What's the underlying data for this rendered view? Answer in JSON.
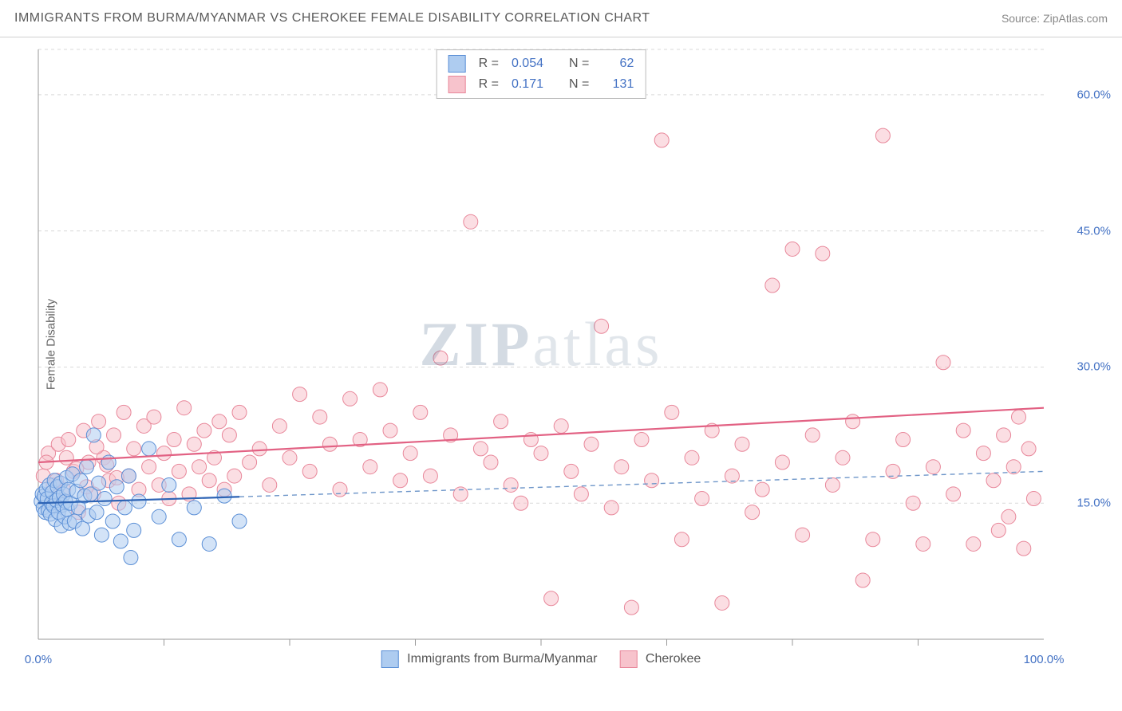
{
  "header": {
    "title": "IMMIGRANTS FROM BURMA/MYANMAR VS CHEROKEE FEMALE DISABILITY CORRELATION CHART",
    "source_label": "Source: ZipAtlas.com"
  },
  "watermark": {
    "bold": "ZIP",
    "rest": "atlas"
  },
  "chart": {
    "type": "scatter",
    "ylabel": "Female Disability",
    "xlim": [
      0,
      100
    ],
    "ylim": [
      0,
      65
    ],
    "xtick_labels": {
      "0": "0.0%",
      "100": "100.0%"
    },
    "xtick_minors": [
      12.5,
      25,
      37.5,
      50,
      62.5,
      75,
      87.5
    ],
    "ytick_labels": {
      "15": "15.0%",
      "30": "30.0%",
      "45": "45.0%",
      "60": "60.0%"
    },
    "grid_color": "#d9d9d9",
    "axis_color": "#999999",
    "background_color": "#ffffff",
    "marker_radius": 9,
    "line_width": 2.2,
    "series": {
      "a": {
        "label": "Immigrants from Burma/Myanmar",
        "fill": "#aeccf0",
        "stroke": "#5b8fd6",
        "fill_opacity": 0.55,
        "line_color": "#2e64b5",
        "dash_color": "#6e96c9",
        "R": "0.054",
        "N": "62",
        "trend": {
          "x1": 0,
          "y1": 15.0,
          "x2": 100,
          "y2": 18.5,
          "solid_until_x": 20
        },
        "points": [
          [
            0.3,
            15.2
          ],
          [
            0.4,
            16.0
          ],
          [
            0.5,
            14.5
          ],
          [
            0.6,
            15.8
          ],
          [
            0.7,
            14.0
          ],
          [
            0.8,
            16.5
          ],
          [
            0.9,
            15.5
          ],
          [
            1.0,
            14.2
          ],
          [
            1.1,
            17.0
          ],
          [
            1.2,
            13.8
          ],
          [
            1.3,
            15.0
          ],
          [
            1.4,
            16.2
          ],
          [
            1.5,
            14.7
          ],
          [
            1.6,
            17.5
          ],
          [
            1.7,
            13.2
          ],
          [
            1.8,
            15.3
          ],
          [
            1.9,
            16.8
          ],
          [
            2.0,
            14.0
          ],
          [
            2.1,
            15.6
          ],
          [
            2.2,
            17.2
          ],
          [
            2.3,
            12.5
          ],
          [
            2.4,
            14.8
          ],
          [
            2.5,
            16.0
          ],
          [
            2.6,
            13.5
          ],
          [
            2.7,
            15.2
          ],
          [
            2.8,
            17.8
          ],
          [
            2.9,
            14.3
          ],
          [
            3.0,
            16.5
          ],
          [
            3.1,
            12.8
          ],
          [
            3.2,
            15.0
          ],
          [
            3.4,
            18.2
          ],
          [
            3.6,
            13.0
          ],
          [
            3.8,
            16.3
          ],
          [
            4.0,
            14.5
          ],
          [
            4.2,
            17.5
          ],
          [
            4.4,
            12.2
          ],
          [
            4.6,
            15.8
          ],
          [
            4.8,
            19.0
          ],
          [
            5.0,
            13.6
          ],
          [
            5.2,
            16.0
          ],
          [
            5.5,
            22.5
          ],
          [
            5.8,
            14.0
          ],
          [
            6.0,
            17.2
          ],
          [
            6.3,
            11.5
          ],
          [
            6.6,
            15.5
          ],
          [
            7.0,
            19.5
          ],
          [
            7.4,
            13.0
          ],
          [
            7.8,
            16.8
          ],
          [
            8.2,
            10.8
          ],
          [
            8.6,
            14.5
          ],
          [
            9.0,
            18.0
          ],
          [
            9.5,
            12.0
          ],
          [
            10.0,
            15.2
          ],
          [
            11.0,
            21.0
          ],
          [
            12.0,
            13.5
          ],
          [
            13.0,
            17.0
          ],
          [
            14.0,
            11.0
          ],
          [
            15.5,
            14.5
          ],
          [
            17.0,
            10.5
          ],
          [
            18.5,
            15.8
          ],
          [
            20.0,
            13.0
          ],
          [
            9.2,
            9.0
          ]
        ]
      },
      "b": {
        "label": "Cherokee",
        "fill": "#f7c3cc",
        "stroke": "#e8879a",
        "fill_opacity": 0.55,
        "line_color": "#e26183",
        "R": "0.171",
        "N": "131",
        "trend": {
          "x1": 0,
          "y1": 19.5,
          "x2": 100,
          "y2": 25.5
        },
        "points": [
          [
            0.5,
            18.0
          ],
          [
            1.0,
            20.5
          ],
          [
            1.5,
            17.0
          ],
          [
            2.0,
            21.5
          ],
          [
            2.5,
            16.5
          ],
          [
            3.0,
            22.0
          ],
          [
            3.5,
            18.5
          ],
          [
            4.0,
            14.0
          ],
          [
            4.5,
            23.0
          ],
          [
            5.0,
            19.5
          ],
          [
            5.5,
            16.0
          ],
          [
            6.0,
            24.0
          ],
          [
            6.5,
            20.0
          ],
          [
            7.0,
            17.5
          ],
          [
            7.5,
            22.5
          ],
          [
            8.0,
            15.0
          ],
          [
            8.5,
            25.0
          ],
          [
            9.0,
            18.0
          ],
          [
            9.5,
            21.0
          ],
          [
            10.0,
            16.5
          ],
          [
            10.5,
            23.5
          ],
          [
            11.0,
            19.0
          ],
          [
            11.5,
            24.5
          ],
          [
            12.0,
            17.0
          ],
          [
            12.5,
            20.5
          ],
          [
            13.0,
            15.5
          ],
          [
            13.5,
            22.0
          ],
          [
            14.0,
            18.5
          ],
          [
            14.5,
            25.5
          ],
          [
            15.0,
            16.0
          ],
          [
            15.5,
            21.5
          ],
          [
            16.0,
            19.0
          ],
          [
            16.5,
            23.0
          ],
          [
            17.0,
            17.5
          ],
          [
            17.5,
            20.0
          ],
          [
            18.0,
            24.0
          ],
          [
            18.5,
            16.5
          ],
          [
            19.0,
            22.5
          ],
          [
            19.5,
            18.0
          ],
          [
            20.0,
            25.0
          ],
          [
            21.0,
            19.5
          ],
          [
            22.0,
            21.0
          ],
          [
            23.0,
            17.0
          ],
          [
            24.0,
            23.5
          ],
          [
            25.0,
            20.0
          ],
          [
            26.0,
            27.0
          ],
          [
            27.0,
            18.5
          ],
          [
            28.0,
            24.5
          ],
          [
            29.0,
            21.5
          ],
          [
            30.0,
            16.5
          ],
          [
            31.0,
            26.5
          ],
          [
            32.0,
            22.0
          ],
          [
            33.0,
            19.0
          ],
          [
            34.0,
            27.5
          ],
          [
            35.0,
            23.0
          ],
          [
            36.0,
            17.5
          ],
          [
            37.0,
            20.5
          ],
          [
            38.0,
            25.0
          ],
          [
            39.0,
            18.0
          ],
          [
            40.0,
            31.0
          ],
          [
            41.0,
            22.5
          ],
          [
            42.0,
            16.0
          ],
          [
            43.0,
            46.0
          ],
          [
            44.0,
            21.0
          ],
          [
            45.0,
            19.5
          ],
          [
            46.0,
            24.0
          ],
          [
            47.0,
            17.0
          ],
          [
            48.0,
            15.0
          ],
          [
            49.0,
            22.0
          ],
          [
            50.0,
            20.5
          ],
          [
            51.0,
            4.5
          ],
          [
            52.0,
            23.5
          ],
          [
            53.0,
            18.5
          ],
          [
            54.0,
            16.0
          ],
          [
            55.0,
            21.5
          ],
          [
            56.0,
            34.5
          ],
          [
            57.0,
            14.5
          ],
          [
            58.0,
            19.0
          ],
          [
            59.0,
            3.5
          ],
          [
            60.0,
            22.0
          ],
          [
            61.0,
            17.5
          ],
          [
            62.0,
            55.0
          ],
          [
            63.0,
            25.0
          ],
          [
            64.0,
            11.0
          ],
          [
            65.0,
            20.0
          ],
          [
            66.0,
            15.5
          ],
          [
            67.0,
            23.0
          ],
          [
            68.0,
            4.0
          ],
          [
            69.0,
            18.0
          ],
          [
            70.0,
            21.5
          ],
          [
            71.0,
            14.0
          ],
          [
            72.0,
            16.5
          ],
          [
            73.0,
            39.0
          ],
          [
            74.0,
            19.5
          ],
          [
            75.0,
            43.0
          ],
          [
            76.0,
            11.5
          ],
          [
            77.0,
            22.5
          ],
          [
            78.0,
            42.5
          ],
          [
            79.0,
            17.0
          ],
          [
            80.0,
            20.0
          ],
          [
            81.0,
            24.0
          ],
          [
            82.0,
            6.5
          ],
          [
            83.0,
            11.0
          ],
          [
            84.0,
            55.5
          ],
          [
            85.0,
            18.5
          ],
          [
            86.0,
            22.0
          ],
          [
            87.0,
            15.0
          ],
          [
            88.0,
            10.5
          ],
          [
            89.0,
            19.0
          ],
          [
            90.0,
            30.5
          ],
          [
            91.0,
            16.0
          ],
          [
            92.0,
            23.0
          ],
          [
            93.0,
            10.5
          ],
          [
            94.0,
            20.5
          ],
          [
            95.0,
            17.5
          ],
          [
            95.5,
            12.0
          ],
          [
            96.0,
            22.5
          ],
          [
            96.5,
            13.5
          ],
          [
            97.0,
            19.0
          ],
          [
            97.5,
            24.5
          ],
          [
            98.0,
            10.0
          ],
          [
            98.5,
            21.0
          ],
          [
            99.0,
            15.5
          ],
          [
            0.8,
            19.5
          ],
          [
            1.8,
            17.5
          ],
          [
            2.8,
            20.0
          ],
          [
            3.8,
            18.8
          ],
          [
            4.8,
            16.8
          ],
          [
            5.8,
            21.2
          ],
          [
            6.8,
            19.2
          ],
          [
            7.8,
            17.8
          ]
        ]
      }
    }
  },
  "bottom_legend": {
    "a_label": "Immigrants from Burma/Myanmar",
    "b_label": "Cherokee"
  }
}
